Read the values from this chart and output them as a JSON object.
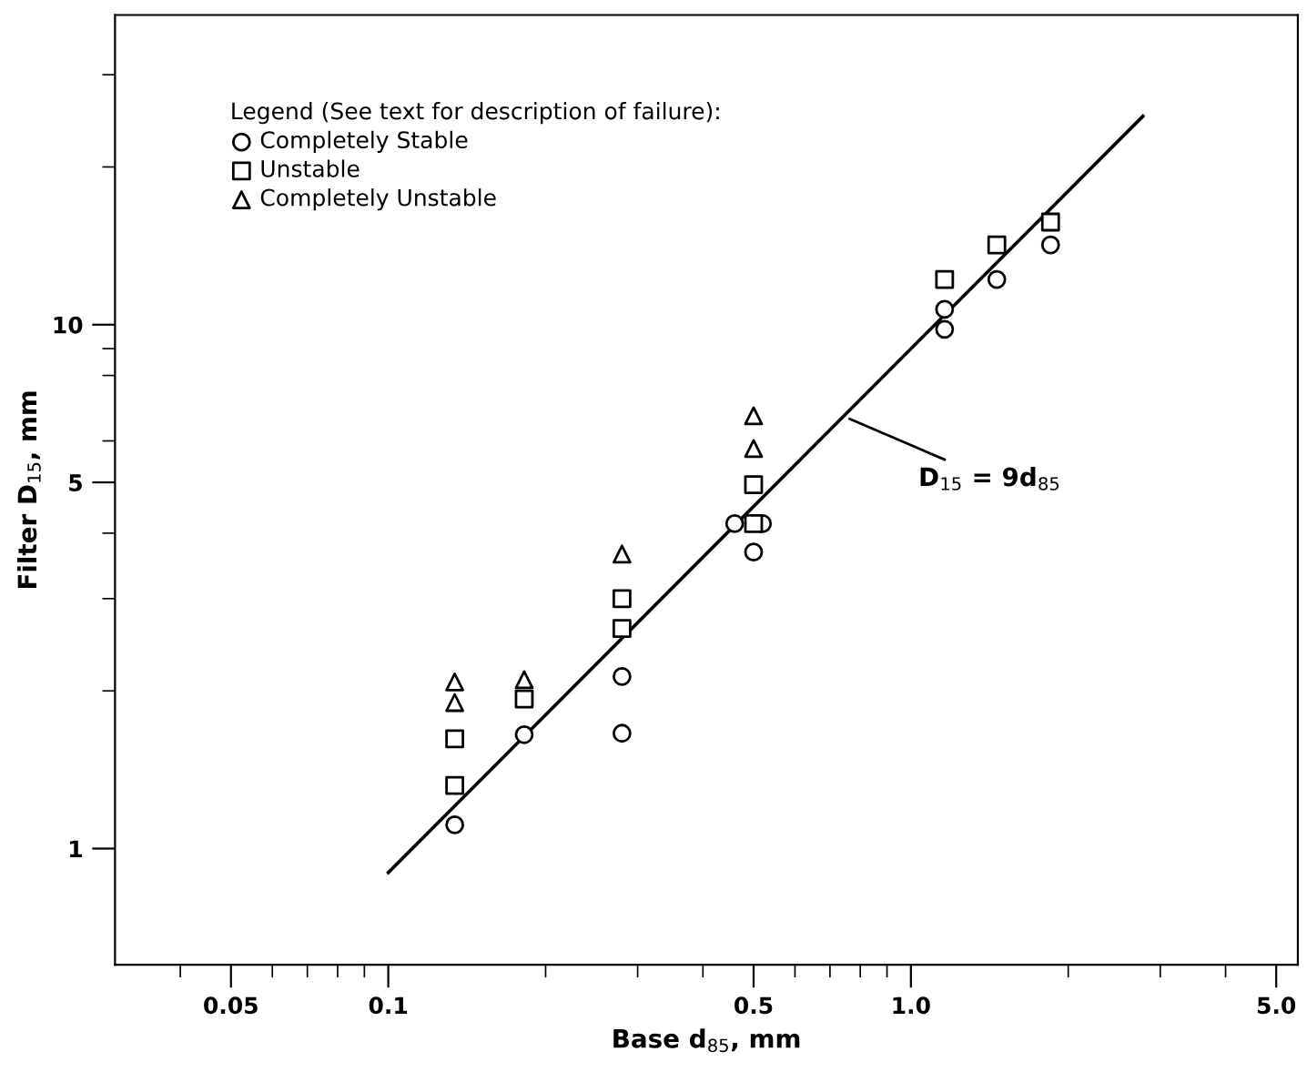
{
  "chart_data": {
    "type": "scatter",
    "xlabel": "Base d$_{85}$, mm",
    "ylabel": "Filter D$_{15}$, mm",
    "legend_title": "Legend (See text for description of failure):",
    "legend": "top left",
    "grid": false,
    "log": "xy",
    "xlim": [
      0.03,
      5.5
    ],
    "ylim": [
      0.6,
      39
    ],
    "xticks": [
      {
        "value": 0.04,
        "label": null
      },
      0.05,
      {
        "value": 0.06,
        "label": null
      },
      {
        "value": 0.07,
        "label": null
      },
      {
        "value": 0.08,
        "label": null
      },
      {
        "value": 0.09,
        "label": null
      },
      0.1,
      {
        "value": 0.2,
        "label": null
      },
      {
        "value": 0.3,
        "label": null
      },
      {
        "value": 0.4,
        "label": null
      },
      0.5,
      {
        "value": 0.6,
        "label": null
      },
      {
        "value": 0.7,
        "label": null
      },
      {
        "value": 0.8,
        "label": null
      },
      {
        "value": 0.9,
        "label": null
      },
      {
        "value": 1,
        "label": "1.0"
      },
      {
        "value": 2,
        "label": null
      },
      {
        "value": 3,
        "label": null
      },
      {
        "value": 4,
        "label": null
      },
      {
        "value": 5,
        "label": "5.0"
      }
    ],
    "yticks": [
      1,
      {
        "value": 2,
        "label": null
      },
      {
        "value": 3,
        "label": null
      },
      {
        "value": 4,
        "label": null
      },
      5,
      {
        "value": 6,
        "label": null
      },
      {
        "value": 8,
        "label": null
      },
      {
        "value": 9,
        "label": null
      },
      10,
      {
        "value": 20,
        "label": null
      },
      {
        "value": 30,
        "label": null
      }
    ],
    "annotations": [
      {
        "text": "D$_{15}$ = 9d$_{85}$",
        "x": 0.74,
        "y": 6.7
      }
    ],
    "series": [
      {
        "name": "Completely Stable",
        "marker": "circle",
        "color": "#000000",
        "x": [
          0.134,
          0.182,
          0.28,
          0.28,
          0.46,
          0.52,
          0.5,
          1.16,
          1.16,
          1.46,
          1.85
        ],
        "values": [
          1.11,
          1.65,
          2.13,
          1.66,
          4.17,
          4.17,
          3.68,
          10.7,
          9.8,
          12.2,
          14.2
        ]
      },
      {
        "name": "Unstable",
        "marker": "square",
        "color": "#000000",
        "x": [
          0.134,
          0.134,
          0.182,
          0.28,
          0.28,
          0.5,
          0.5,
          1.16,
          1.46,
          1.85
        ],
        "values": [
          1.62,
          1.32,
          1.93,
          3.0,
          2.63,
          4.95,
          4.17,
          12.2,
          14.2,
          15.7
        ]
      },
      {
        "name": "Completely Unstable",
        "marker": "triangle",
        "color": "#000000",
        "x": [
          0.134,
          0.134,
          0.182,
          0.28,
          0.5,
          0.5
        ],
        "values": [
          2.08,
          1.9,
          2.1,
          3.65,
          6.7,
          5.8
        ]
      },
      {
        "type": "line",
        "color": "#000000",
        "line_style": "solid",
        "marker": "none",
        "x": [
          0.1,
          2.78
        ],
        "values": [
          0.9,
          25
        ]
      }
    ]
  }
}
